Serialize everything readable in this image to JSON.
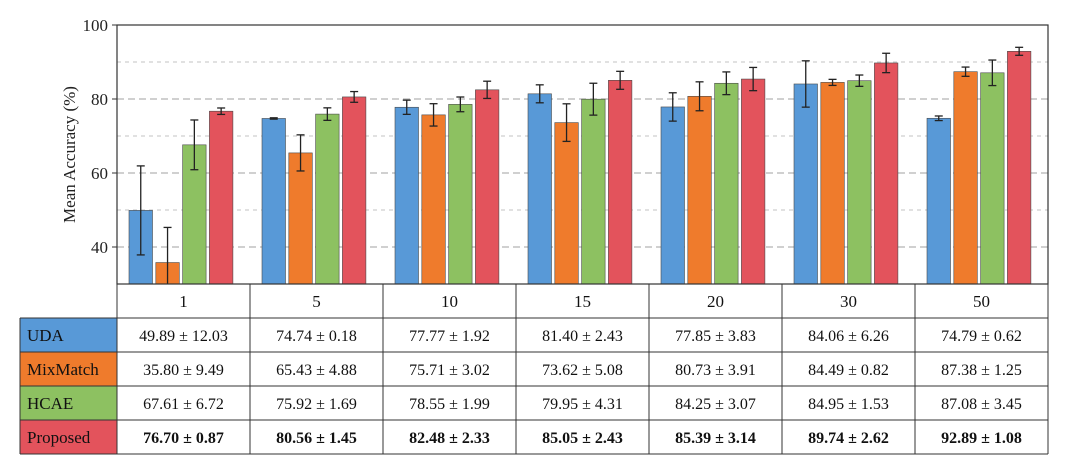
{
  "colors": {
    "UDA": "#5899d7",
    "MixMatch": "#ef7b2c",
    "HCAE": "#8dc161",
    "Proposed": "#e3535c",
    "grid": "#aaaaaa",
    "axis": "#333333"
  },
  "chart_data": {
    "type": "bar",
    "title": "",
    "xlabel": "",
    "ylabel": "Mean Accuracy (%)",
    "ylim": [
      30,
      100
    ],
    "yticks": [
      40,
      60,
      80,
      100
    ],
    "grid": "horizontal dashed",
    "categories": [
      "1",
      "5",
      "10",
      "15",
      "20",
      "30",
      "50"
    ],
    "series": [
      {
        "name": "UDA",
        "values": [
          49.89,
          74.74,
          77.77,
          81.4,
          77.85,
          84.06,
          74.79
        ],
        "errors": [
          12.03,
          0.18,
          1.92,
          2.43,
          3.83,
          6.26,
          0.62
        ],
        "labels": [
          "49.89 ± 12.03",
          "74.74 ± 0.18",
          "77.77 ± 1.92",
          "81.40 ± 2.43",
          "77.85 ± 3.83",
          "84.06 ± 6.26",
          "74.79 ± 0.62"
        ]
      },
      {
        "name": "MixMatch",
        "values": [
          35.8,
          65.43,
          75.71,
          73.62,
          80.73,
          84.49,
          87.38
        ],
        "errors": [
          9.49,
          4.88,
          3.02,
          5.08,
          3.91,
          0.82,
          1.25
        ],
        "labels": [
          "35.80 ± 9.49",
          "65.43 ± 4.88",
          "75.71 ± 3.02",
          "73.62 ± 5.08",
          "80.73 ± 3.91",
          "84.49 ± 0.82",
          "87.38 ± 1.25"
        ]
      },
      {
        "name": "HCAE",
        "values": [
          67.61,
          75.92,
          78.55,
          79.95,
          84.25,
          84.95,
          87.08
        ],
        "errors": [
          6.72,
          1.69,
          1.99,
          4.31,
          3.07,
          1.53,
          3.45
        ],
        "labels": [
          "67.61 ± 6.72",
          "75.92 ± 1.69",
          "78.55 ± 1.99",
          "79.95 ± 4.31",
          "84.25 ± 3.07",
          "84.95 ± 1.53",
          "87.08 ± 3.45"
        ]
      },
      {
        "name": "Proposed",
        "values": [
          76.7,
          80.56,
          82.48,
          85.05,
          85.39,
          89.74,
          92.89
        ],
        "errors": [
          0.87,
          1.45,
          2.33,
          2.43,
          3.14,
          2.62,
          1.08
        ],
        "labels": [
          "76.70 ± 0.87",
          "80.56 ± 1.45",
          "82.48 ± 2.33",
          "85.05 ± 2.43",
          "85.39 ± 3.14",
          "89.74 ± 2.62",
          "92.89 ± 1.08"
        ],
        "bold": true
      }
    ]
  }
}
